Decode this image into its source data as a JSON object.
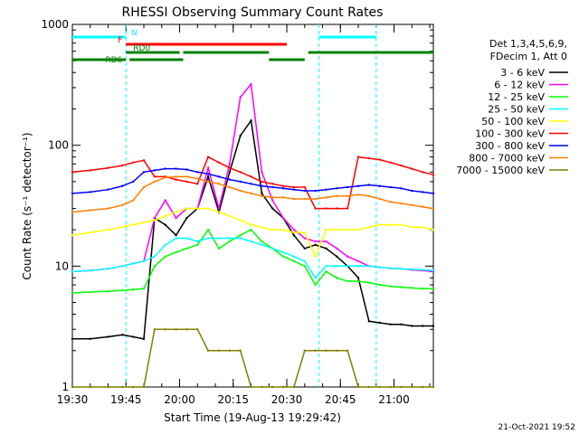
{
  "chart_data": {
    "type": "line",
    "title": "RHESSI Observing Summary Count Rates",
    "xlabel": "Start Time (19-Aug-13 19:29:42)",
    "ylabel": "Count Rate (s⁻¹ detector⁻¹)",
    "y_scale": "log",
    "ylim": [
      1,
      1000
    ],
    "x_ticks": [
      "19:30",
      "19:45",
      "20:00",
      "20:15",
      "20:30",
      "20:45",
      "21:00"
    ],
    "y_ticks": [
      "1",
      "10",
      "100",
      "1000"
    ],
    "x_range_minutes": [
      0,
      101
    ],
    "legend_header": [
      "Det 1,3,4,5,6,9,",
      "FDecim 1, Att 0"
    ],
    "legend_placement": "right",
    "timestamp": "21-Oct-2021 19:52",
    "x_minutes": [
      0,
      5,
      10,
      14,
      17,
      20,
      23,
      26,
      29,
      32,
      35,
      38,
      41,
      44,
      47,
      50,
      53,
      56,
      59,
      62,
      65,
      68,
      71,
      74,
      77,
      80,
      83,
      86,
      89,
      92,
      95,
      98,
      101
    ],
    "series": [
      {
        "name": "3 - 6 keV",
        "color": "#000000",
        "values": [
          2.5,
          2.5,
          2.6,
          2.7,
          2.6,
          2.5,
          25,
          22,
          18,
          25,
          30,
          55,
          28,
          60,
          120,
          160,
          40,
          30,
          25,
          18,
          14,
          15,
          14,
          12,
          10,
          8,
          3.5,
          3.4,
          3.3,
          3.3,
          3.2,
          3.2,
          3.2
        ]
      },
      {
        "name": "6 - 12 keV",
        "color": "#ff00ff",
        "values": [
          9,
          9.2,
          9.5,
          10,
          10.5,
          11,
          25,
          35,
          25,
          30,
          30,
          65,
          30,
          70,
          250,
          320,
          60,
          35,
          25,
          20,
          17,
          16,
          16,
          14,
          12,
          11,
          10,
          9.8,
          9.6,
          9.5,
          9.3,
          9.2,
          9
        ]
      },
      {
        "name": "12 - 25 keV",
        "color": "#00ff00",
        "values": [
          6,
          6.1,
          6.2,
          6.3,
          6.4,
          6.5,
          10,
          12,
          13,
          14,
          15,
          20,
          14,
          16,
          18,
          20,
          16,
          14,
          12,
          11,
          10,
          7,
          9,
          8,
          7.5,
          7.5,
          7.3,
          7,
          6.8,
          6.7,
          6.6,
          6.5,
          6.5
        ]
      },
      {
        "name": "25 - 50 keV",
        "color": "#00ffff",
        "values": [
          9,
          9.2,
          9.5,
          10,
          10.5,
          11,
          12,
          15,
          17,
          17,
          16,
          17,
          17,
          17,
          17,
          16,
          15,
          14,
          13,
          12,
          11,
          8,
          10,
          10,
          10,
          10,
          10,
          9.8,
          9.6,
          9.5,
          9.4,
          9.3,
          9.2
        ]
      },
      {
        "name": "50 - 100 keV",
        "color": "#ffff00",
        "values": [
          18,
          19,
          20,
          21,
          22,
          23,
          24,
          26,
          28,
          30,
          30,
          30,
          28,
          26,
          24,
          22,
          21,
          20,
          20,
          19,
          19,
          12,
          20,
          20,
          20,
          20,
          21,
          22,
          22,
          22,
          21,
          21,
          20
        ]
      },
      {
        "name": "100 - 300 keV",
        "color": "#ff0000",
        "values": [
          60,
          62,
          65,
          68,
          72,
          75,
          55,
          55,
          52,
          50,
          48,
          80,
          72,
          65,
          60,
          55,
          50,
          48,
          46,
          45,
          45,
          30,
          30,
          30,
          30,
          80,
          78,
          76,
          72,
          68,
          64,
          60,
          57
        ]
      },
      {
        "name": "300 - 800 keV",
        "color": "#0000ff",
        "values": [
          40,
          41,
          43,
          46,
          50,
          60,
          62,
          64,
          64,
          63,
          60,
          58,
          55,
          52,
          50,
          48,
          46,
          45,
          44,
          43,
          42,
          42,
          43,
          44,
          45,
          46,
          47,
          46,
          45,
          44,
          42,
          41,
          40
        ]
      },
      {
        "name": "800 - 7000 keV",
        "color": "#ff8000",
        "values": [
          28,
          29,
          30,
          32,
          35,
          45,
          50,
          54,
          55,
          55,
          53,
          50,
          48,
          45,
          42,
          40,
          38,
          37,
          37,
          36,
          36,
          36,
          37,
          38,
          38,
          39,
          38,
          36,
          34,
          33,
          32,
          31,
          30
        ]
      },
      {
        "name": "7000 - 15000 keV",
        "color": "#808000",
        "values": [
          1,
          1,
          1,
          1,
          1,
          1,
          3,
          3,
          3,
          3,
          3,
          2,
          2,
          2,
          2,
          1,
          1,
          1,
          1,
          1,
          2,
          2,
          2,
          2,
          2,
          1,
          1,
          1,
          1,
          1,
          1,
          1,
          1
        ]
      }
    ],
    "bars": [
      {
        "label": "N",
        "color": "#00ffff",
        "row": 1,
        "segments": [
          [
            0,
            15
          ],
          [
            69,
            85
          ]
        ]
      },
      {
        "label": "F",
        "color": "#ff0000",
        "row": 2,
        "segments": [
          [
            15,
            60
          ]
        ]
      },
      {
        "label": "RD0",
        "color": "#008000",
        "row": 3,
        "segments": [
          [
            15,
            30
          ],
          [
            31,
            55
          ],
          [
            66,
            101
          ]
        ]
      },
      {
        "label": "RD6",
        "color": "#008000",
        "row": 4,
        "segments": [
          [
            0,
            15
          ],
          [
            16,
            31
          ],
          [
            55,
            65
          ]
        ]
      }
    ],
    "vertical_lines_minutes": [
      15,
      69,
      85
    ]
  }
}
